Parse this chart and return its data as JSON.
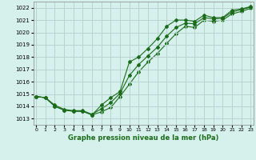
{
  "xlabel": "Graphe pression niveau de la mer (hPa)",
  "bg_color": "#d6f0ec",
  "grid_color": "#b8d4d0",
  "line_color": "#1a6b1a",
  "ylim": [
    1012.5,
    1022.5
  ],
  "xlim": [
    -0.3,
    23.3
  ],
  "yticks": [
    1013,
    1014,
    1015,
    1016,
    1017,
    1018,
    1019,
    1020,
    1021,
    1022
  ],
  "xticks": [
    0,
    1,
    2,
    3,
    4,
    5,
    6,
    7,
    8,
    9,
    10,
    11,
    12,
    13,
    14,
    15,
    16,
    17,
    18,
    19,
    20,
    21,
    22,
    23
  ],
  "line1_x": [
    0,
    1,
    2,
    3,
    4,
    5,
    6,
    7,
    8,
    9,
    10,
    11,
    12,
    13,
    14,
    15,
    16,
    17,
    18,
    19,
    20,
    21,
    22,
    23
  ],
  "line1_y": [
    1014.8,
    1014.7,
    1014.0,
    1013.7,
    1013.6,
    1013.6,
    1013.3,
    1014.1,
    1014.7,
    1015.2,
    1017.6,
    1018.0,
    1018.7,
    1019.5,
    1020.5,
    1021.0,
    1021.0,
    1020.9,
    1021.4,
    1021.2,
    1021.2,
    1021.8,
    1021.9,
    1022.1
  ],
  "line2_x": [
    0,
    1,
    2,
    3,
    4,
    5,
    6,
    7,
    8,
    9,
    10,
    11,
    12,
    13,
    14,
    15,
    16,
    17,
    18,
    19,
    20,
    21,
    22,
    23
  ],
  "line2_y": [
    1014.8,
    1014.7,
    1014.1,
    1013.75,
    1013.65,
    1013.65,
    1013.35,
    1013.8,
    1014.3,
    1015.05,
    1016.5,
    1017.4,
    1018.1,
    1018.8,
    1019.7,
    1020.4,
    1020.75,
    1020.7,
    1021.2,
    1021.1,
    1021.15,
    1021.65,
    1021.85,
    1022.05
  ],
  "line3_x": [
    0,
    1,
    2,
    3,
    4,
    5,
    6,
    7,
    8,
    9,
    10,
    11,
    12,
    13,
    14,
    15,
    16,
    17,
    18,
    19,
    20,
    21,
    22,
    23
  ],
  "line3_y": [
    1014.8,
    1014.7,
    1014.0,
    1013.7,
    1013.6,
    1013.6,
    1013.3,
    1013.55,
    1013.9,
    1014.8,
    1015.8,
    1016.8,
    1017.6,
    1018.3,
    1019.1,
    1019.9,
    1020.5,
    1020.4,
    1021.0,
    1020.9,
    1021.0,
    1021.5,
    1021.7,
    1021.95
  ]
}
